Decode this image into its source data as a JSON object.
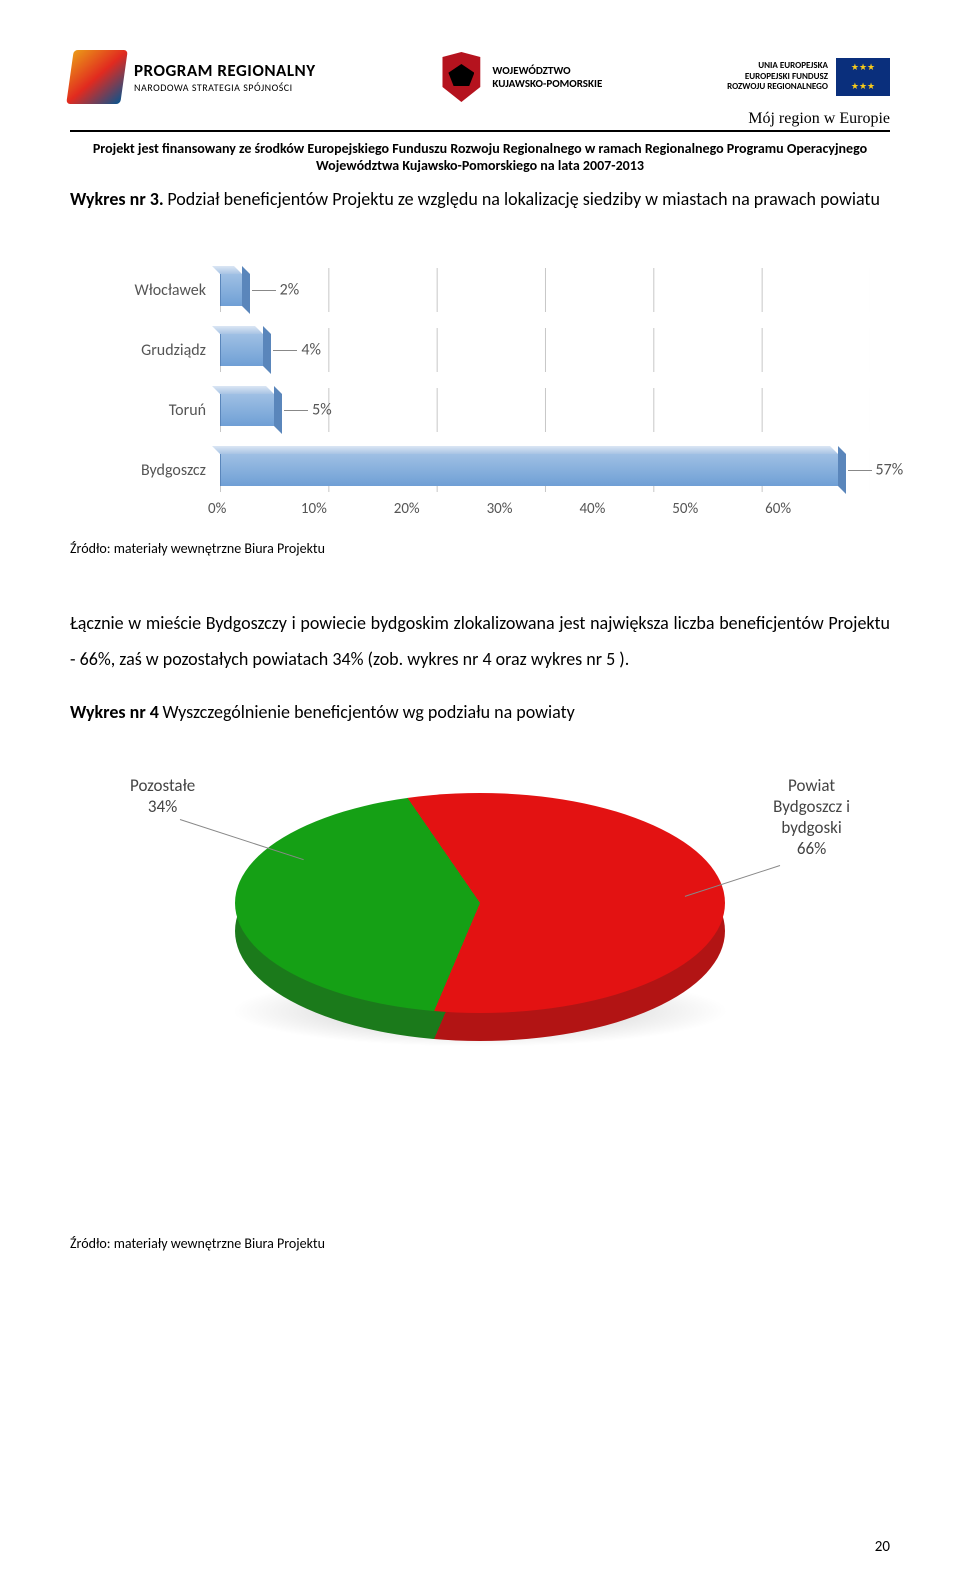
{
  "header": {
    "left": {
      "line1": "PROGRAM REGIONALNY",
      "line2": "NARODOWA STRATEGIA SPÓJNOŚCI"
    },
    "center": {
      "line1": "WOJEWÓDZTWO",
      "line2": "KUJAWSKO-POMORSKIE"
    },
    "right": {
      "line1": "UNIA EUROPEJSKA",
      "line2": "EUROPEJSKI FUNDUSZ",
      "line3": "ROZWOJU REGIONALNEGO"
    },
    "tagline": "Mój region w Europie",
    "sub1": "Projekt jest finansowany ze środków Europejskiego Funduszu Rozwoju Regionalnego w ramach Regionalnego Programu Operacyjnego",
    "sub2": "Województwa Kujawsko-Pomorskiego na lata 2007-2013"
  },
  "chart3": {
    "title_prefix": "Wykres nr 3.",
    "title_rest": " Podział beneficjentów Projektu ze względu na lokalizację siedziby w miastach na prawach powiatu",
    "type": "bar",
    "categories": [
      "Włocławek",
      "Grudziądz",
      "Toruń",
      "Bydgoszcz"
    ],
    "values": [
      2,
      4,
      5,
      57
    ],
    "value_labels": [
      "2%",
      "4%",
      "5%",
      "57%"
    ],
    "x_ticks": [
      "0%",
      "10%",
      "20%",
      "30%",
      "40%",
      "50%",
      "60%"
    ],
    "x_max": 60,
    "bar_fill": "#8ab3dd",
    "grid_color": "#c7c7c7",
    "label_color": "#555555",
    "category_fontsize": 16,
    "source": "Źródło: materiały wewnętrzne Biura Projektu"
  },
  "body": "Łącznie w mieście Bydgoszczy i powiecie bydgoskim zlokalizowana jest największa liczba beneficjentów Projektu - 66%, zaś w pozostałych powiatach 34% (zob. wykres nr 4 oraz wykres nr 5 ).",
  "chart4": {
    "title_prefix": "Wykres nr 4",
    "title_rest": " Wyszczególnienie beneficjentów wg podziału na powiaty",
    "type": "pie",
    "slices": [
      {
        "label": "Pozostałe 34%",
        "label_l1": "Pozostałe",
        "label_l2": "34%",
        "value": 34,
        "color": "#15a015"
      },
      {
        "label": "Powiat Bydgoszcz i bydgoski 66%",
        "label_l1": "Powiat",
        "label_l2": "Bydgoszcz i",
        "label_l3": "bydgoski",
        "label_l4": "66%",
        "value": 66,
        "color": "#e31212"
      }
    ],
    "start_angle_deg": 203,
    "source": "Źródło: materiały wewnętrzne Biura Projektu"
  },
  "pagenum": "20"
}
